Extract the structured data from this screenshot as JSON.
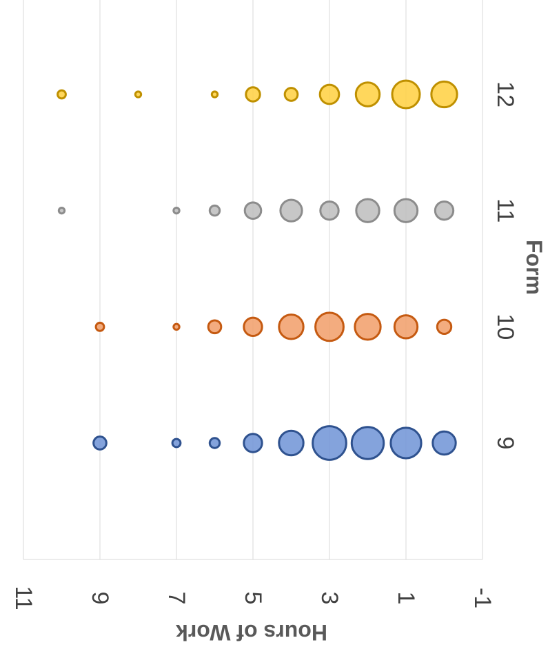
{
  "chart_data": {
    "type": "bubble",
    "rotation": "rotated 90 degrees clockwise",
    "xlabel": "Form",
    "ylabel": "Hours of Work",
    "categories": [
      "9",
      "10",
      "11",
      "12"
    ],
    "y_ticks": [
      "11",
      "9",
      "7",
      "5",
      "3",
      "1",
      "-1"
    ],
    "ylim": [
      -1,
      11
    ],
    "series": [
      {
        "name": "9",
        "x": 9,
        "color": "#4472C4",
        "fill": "#6E93D6",
        "stroke": "#2F528F",
        "points": [
          {
            "y": 9,
            "size": 2.5
          },
          {
            "y": 7,
            "size": 1
          },
          {
            "y": 6,
            "size": 1.5
          },
          {
            "y": 5,
            "size": 5
          },
          {
            "y": 4,
            "size": 9
          },
          {
            "y": 3,
            "size": 17
          },
          {
            "y": 2,
            "size": 15.5
          },
          {
            "y": 1,
            "size": 14
          },
          {
            "y": 0,
            "size": 8
          }
        ]
      },
      {
        "name": "10",
        "x": 10,
        "color": "#ED7D31",
        "fill": "#F19E68",
        "stroke": "#C55A11",
        "points": [
          {
            "y": 9,
            "size": 1
          },
          {
            "y": 7,
            "size": 0.5
          },
          {
            "y": 6,
            "size": 2.5
          },
          {
            "y": 5,
            "size": 5
          },
          {
            "y": 4,
            "size": 9
          },
          {
            "y": 3,
            "size": 12
          },
          {
            "y": 2,
            "size": 10
          },
          {
            "y": 1,
            "size": 8
          },
          {
            "y": 0,
            "size": 3
          }
        ]
      },
      {
        "name": "11",
        "x": 11,
        "color": "#A5A5A5",
        "fill": "#BDBDBD",
        "stroke": "#8C8C8C",
        "points": [
          {
            "y": 10,
            "size": 0.5
          },
          {
            "y": 7,
            "size": 0.5
          },
          {
            "y": 6,
            "size": 1.5
          },
          {
            "y": 5,
            "size": 4
          },
          {
            "y": 4,
            "size": 7
          },
          {
            "y": 3,
            "size": 5
          },
          {
            "y": 2,
            "size": 8
          },
          {
            "y": 1,
            "size": 8
          },
          {
            "y": 0,
            "size": 5
          }
        ]
      },
      {
        "name": "12",
        "x": 12,
        "color": "#FFC000",
        "fill": "#FFD040",
        "stroke": "#BF9000",
        "points": [
          {
            "y": 10,
            "size": 1
          },
          {
            "y": 8,
            "size": 0.5
          },
          {
            "y": 6,
            "size": 0.5
          },
          {
            "y": 5,
            "size": 3
          },
          {
            "y": 4,
            "size": 2.5
          },
          {
            "y": 3,
            "size": 5.5
          },
          {
            "y": 2,
            "size": 8.5
          },
          {
            "y": 1,
            "size": 11.5
          },
          {
            "y": 0,
            "size": 10
          }
        ]
      }
    ]
  }
}
